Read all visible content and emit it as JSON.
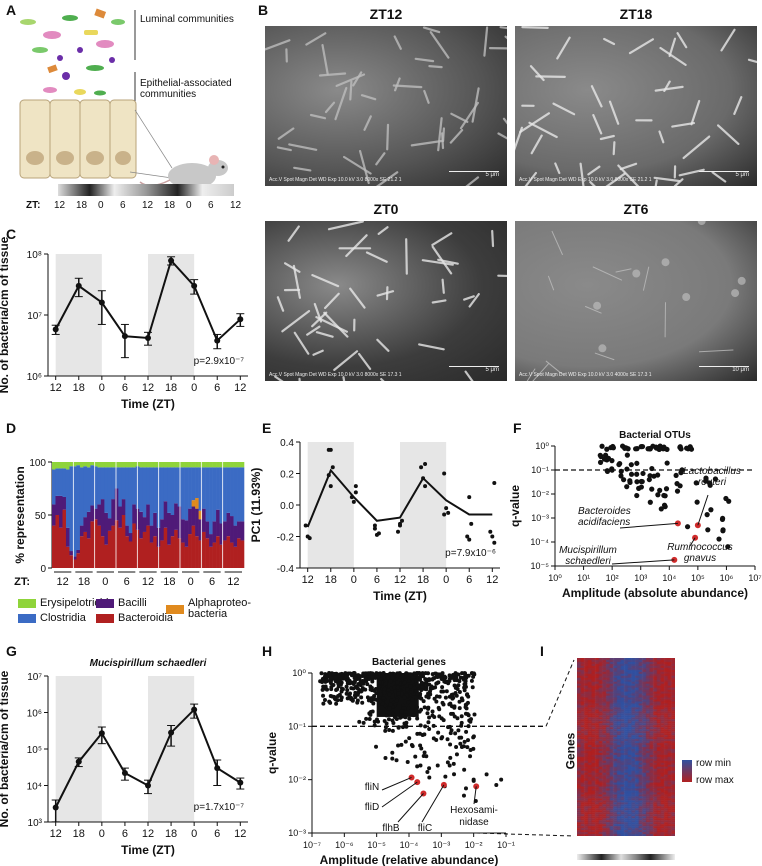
{
  "panels": {
    "A": "A",
    "B": "B",
    "C": "C",
    "D": "D",
    "E": "E",
    "F": "F",
    "G": "G",
    "H": "H",
    "I": "I"
  },
  "panelA": {
    "luminal_label": "Luminal communities",
    "epithelial_label": "Epithelial-associated communities",
    "zt_label": "ZT:",
    "zt_ticks": [
      "12",
      "18",
      "0",
      "6",
      "12",
      "18",
      "0",
      "6",
      "12"
    ]
  },
  "panelB": {
    "images": [
      {
        "title": "ZT12",
        "caption": "Acc.V  Spot Magn   Det  WD  Exp      10.0 kV 3.0   8000x   SE  21.2  1",
        "scale": "5 μm"
      },
      {
        "title": "ZT18",
        "caption": "Acc.V  Spot Magn   Det  WD  Exp      10.0 kV 3.0   8000x   SE  21.2  1",
        "scale": "5 μm"
      },
      {
        "title": "ZT0",
        "caption": "Acc.V  Spot Magn   Det  WD  Exp      10.0 kV 3.0   8000x   SE  17.3  1",
        "scale": "5 μm"
      },
      {
        "title": "ZT6",
        "caption": "Acc.V  Spot Magn   Det  WD  Exp      10.0 kV 3.0   4000x   SE  17.3  1",
        "scale": "10 μm"
      }
    ]
  },
  "chart_data": [
    {
      "id": "C",
      "type": "line",
      "ylabel": "No. of bacteria/cm of tissue",
      "xlabel": "Time (ZT)",
      "yscale": "log",
      "ylim": [
        1000000,
        100000000
      ],
      "yticks": [
        "10⁶",
        "10⁷",
        "10⁸"
      ],
      "xticks": [
        "12",
        "18",
        "0",
        "6",
        "12",
        "18",
        "0",
        "6",
        "12"
      ],
      "x": [
        12,
        18,
        24,
        30,
        36,
        42,
        48,
        54,
        60
      ],
      "y": [
        5800000,
        30000000,
        16000000,
        4500000,
        4200000,
        78000000,
        30000000,
        3800000,
        8500000
      ],
      "err": [
        1000000,
        10000000,
        9000000,
        2500000,
        1000000,
        12000000,
        8000000,
        1000000,
        2000000
      ],
      "annotation": "p=2.9x10⁻⁷"
    },
    {
      "id": "D",
      "type": "bar",
      "ylabel": "% representation",
      "ylim": [
        0,
        100
      ],
      "yticks": [
        "0",
        "50",
        "100"
      ],
      "xlabel": "ZT:",
      "xticks": [
        "12",
        "18",
        "0",
        "6",
        "12",
        "18",
        "0",
        "6",
        "12"
      ],
      "legend": [
        {
          "name": "Erysipelotrichi",
          "color": "#8fd43a"
        },
        {
          "name": "Bacilli",
          "color": "#4f1a78"
        },
        {
          "name": "Alphaproteo-bacteria",
          "color": "#e08a1e"
        },
        {
          "name": "Clostridia",
          "color": "#3b6bc4"
        },
        {
          "name": "Bacteroidia",
          "color": "#b02020"
        }
      ],
      "series": [
        {
          "name": "Bacteroidia",
          "values": [
            40,
            50,
            38,
            55,
            20,
            12,
            8,
            14,
            30,
            34,
            28,
            44,
            46,
            40,
            30,
            22,
            35,
            40,
            45,
            38,
            50,
            30,
            25,
            42,
            36,
            28,
            34,
            40,
            24,
            30,
            20,
            26,
            38,
            22,
            30,
            36,
            28,
            24,
            20,
            32,
            40,
            30,
            26,
            34,
            28,
            20,
            24,
            30,
            22,
            26,
            30,
            24,
            20,
            28,
            26
          ]
        },
        {
          "name": "Bacilli",
          "values": [
            20,
            18,
            30,
            12,
            18,
            4,
            3,
            3,
            10,
            14,
            25,
            15,
            10,
            20,
            35,
            30,
            12,
            25,
            30,
            20,
            15,
            10,
            8,
            18,
            20,
            25,
            14,
            20,
            16,
            22,
            18,
            20,
            25,
            30,
            20,
            25,
            30,
            22,
            25,
            24,
            18,
            26,
            20,
            22,
            16,
            12,
            20,
            25,
            20,
            18,
            22,
            25,
            20,
            16,
            18
          ]
        },
        {
          "name": "Alphaproteo-bacteria",
          "values": [
            0,
            0,
            0,
            0,
            0,
            0,
            0,
            0,
            0,
            0,
            0,
            0,
            0,
            0,
            0,
            0,
            0,
            0,
            0,
            0,
            0,
            0,
            0,
            0,
            0,
            0,
            0,
            0,
            0,
            0,
            0,
            0,
            0,
            0,
            0,
            0,
            0,
            0,
            0,
            0,
            6,
            10,
            8,
            0,
            0,
            0,
            0,
            0,
            0,
            0,
            0,
            0,
            0,
            0,
            0
          ]
        },
        {
          "name": "Clostridia",
          "values": [
            33,
            26,
            26,
            27,
            55,
            80,
            85,
            80,
            55,
            48,
            42,
            38,
            40,
            35,
            30,
            43,
            48,
            30,
            20,
            37,
            30,
            55,
            62,
            35,
            40,
            42,
            47,
            35,
            55,
            43,
            57,
            49,
            32,
            43,
            45,
            34,
            37,
            49,
            50,
            39,
            31,
            29,
            41,
            39,
            51,
            63,
            51,
            40,
            53,
            51,
            43,
            46,
            55,
            51,
            51
          ]
        },
        {
          "name": "Erysipelotrichi",
          "values": [
            7,
            6,
            6,
            6,
            7,
            4,
            4,
            3,
            5,
            4,
            5,
            3,
            4,
            5,
            5,
            5,
            5,
            5,
            5,
            5,
            5,
            5,
            5,
            5,
            4,
            5,
            5,
            5,
            5,
            5,
            5,
            5,
            5,
            5,
            5,
            5,
            5,
            5,
            5,
            5,
            5,
            5,
            5,
            5,
            5,
            5,
            5,
            5,
            5,
            5,
            5,
            5,
            5,
            5,
            5
          ]
        }
      ]
    },
    {
      "id": "E",
      "type": "scatter",
      "ylabel": "PC1 (11.93%)",
      "xlabel": "Time (ZT)",
      "ylim": [
        -0.4,
        0.4
      ],
      "yticks": [
        "-0.4",
        "-0.2",
        "0.0",
        "0.2",
        "0.4"
      ],
      "xticks": [
        "12",
        "18",
        "0",
        "6",
        "12",
        "18",
        "0",
        "6",
        "12"
      ],
      "points": [
        [
          12,
          -0.13
        ],
        [
          12,
          -0.2
        ],
        [
          12,
          -0.21
        ],
        [
          18,
          0.35
        ],
        [
          18,
          0.35
        ],
        [
          18,
          0.24
        ],
        [
          18,
          0.19
        ],
        [
          18,
          0.12
        ],
        [
          24,
          0.12
        ],
        [
          24,
          0.05
        ],
        [
          24,
          0.02
        ],
        [
          24,
          0.08
        ],
        [
          30,
          -0.15
        ],
        [
          30,
          -0.19
        ],
        [
          30,
          -0.18
        ],
        [
          30,
          -0.13
        ],
        [
          36,
          -0.12
        ],
        [
          36,
          -0.1
        ],
        [
          36,
          -0.17
        ],
        [
          36,
          -0.13
        ],
        [
          42,
          0.26
        ],
        [
          42,
          0.24
        ],
        [
          42,
          0.17
        ],
        [
          42,
          0.12
        ],
        [
          48,
          0.2
        ],
        [
          48,
          -0.02
        ],
        [
          48,
          -0.05
        ],
        [
          48,
          -0.06
        ],
        [
          54,
          0.05
        ],
        [
          54,
          -0.12
        ],
        [
          54,
          -0.2
        ],
        [
          54,
          -0.22
        ],
        [
          60,
          0.14
        ],
        [
          60,
          -0.17
        ],
        [
          60,
          -0.2
        ],
        [
          60,
          -0.24
        ]
      ],
      "line": {
        "x": [
          12,
          18,
          24,
          30,
          36,
          42,
          48,
          54,
          60
        ],
        "y": [
          -0.14,
          0.22,
          0.05,
          -0.1,
          -0.08,
          0.17,
          0.03,
          -0.06,
          -0.06
        ]
      },
      "annotation": "p=7.9x10⁻⁶"
    },
    {
      "id": "F",
      "type": "scatter",
      "title": "Bacterial OTUs",
      "ylabel": "q-value",
      "xlabel": "Amplitude (absolute abundance)",
      "xscale": "log",
      "yscale": "log",
      "xticks": [
        "10⁰",
        "10¹",
        "10²",
        "10³",
        "10⁴",
        "10⁵",
        "10⁶",
        "10⁷"
      ],
      "yticks": [
        "10⁰",
        "10⁻¹",
        "10⁻²",
        "10⁻³",
        "10⁻⁴",
        "10⁻⁵"
      ],
      "threshold": 0.1,
      "highlight": [
        {
          "name": "Lactobacillus reuteri",
          "x": 100000,
          "y": 0.0005
        },
        {
          "name": "Bacteroides acidifaciens",
          "x": 20000,
          "y": 0.0006
        },
        {
          "name": "Ruminococcus gnavus",
          "x": 80000,
          "y": 0.00015
        },
        {
          "name": "Mucispirillum schaedleri",
          "x": 15000,
          "y": 1.8e-05
        }
      ],
      "labels": {
        "lactobacillus": "Lactobacillus\nreuteri",
        "bacteroides": "Bacteroides\nacidifaciens",
        "ruminococcus": "Ruminococcus\ngnavus",
        "mucispirillum": "Mucispirillum\nschaedleri"
      }
    },
    {
      "id": "G",
      "type": "line",
      "title": "Mucispirillum schaedleri",
      "ylabel": "No. of bacteria/cm of tissue",
      "xlabel": "Time (ZT)",
      "yscale": "log",
      "ylim": [
        1000,
        10000000
      ],
      "yticks": [
        "10³",
        "10⁴",
        "10⁵",
        "10⁶",
        "10⁷"
      ],
      "xticks": [
        "12",
        "18",
        "0",
        "6",
        "12",
        "18",
        "0",
        "6",
        "12"
      ],
      "x": [
        12,
        18,
        24,
        30,
        36,
        42,
        48,
        54,
        60
      ],
      "y": [
        2500,
        45000,
        270000,
        22000,
        10000,
        280000,
        1200000,
        30000,
        12000
      ],
      "err": [
        1500,
        12000,
        130000,
        8000,
        4000,
        160000,
        500000,
        20000,
        4000
      ],
      "annotation": "p=1.7x10⁻⁷"
    },
    {
      "id": "H",
      "type": "scatter",
      "title": "Bacterial genes",
      "ylabel": "q-value",
      "xlabel": "Amplitude (relative abundance)",
      "xscale": "log",
      "yscale": "log",
      "xticks": [
        "10⁻⁷",
        "10⁻⁶",
        "10⁻⁵",
        "10⁻⁴",
        "10⁻³",
        "10⁻²",
        "10⁻¹"
      ],
      "yticks": [
        "10⁰",
        "10⁻¹",
        "10⁻²",
        "10⁻³"
      ],
      "threshold": 0.1,
      "highlight": [
        {
          "name": "fliN",
          "x": 0.00012,
          "y": 0.011
        },
        {
          "name": "fliD",
          "x": 0.00018,
          "y": 0.009
        },
        {
          "name": "flhB",
          "x": 0.00028,
          "y": 0.0055
        },
        {
          "name": "fliC",
          "x": 0.0012,
          "y": 0.008
        },
        {
          "name": "Hexosami-nidase",
          "x": 0.012,
          "y": 0.0075
        }
      ],
      "labels": {
        "fliN": "fliN",
        "fliD": "fliD",
        "flhB": "flhB",
        "fliC": "fliC",
        "hexo": "Hexosami-\nnidase"
      }
    }
  ],
  "panelI": {
    "ylabel": "Genes",
    "legend_min": "row min",
    "legend_max": "row max"
  }
}
